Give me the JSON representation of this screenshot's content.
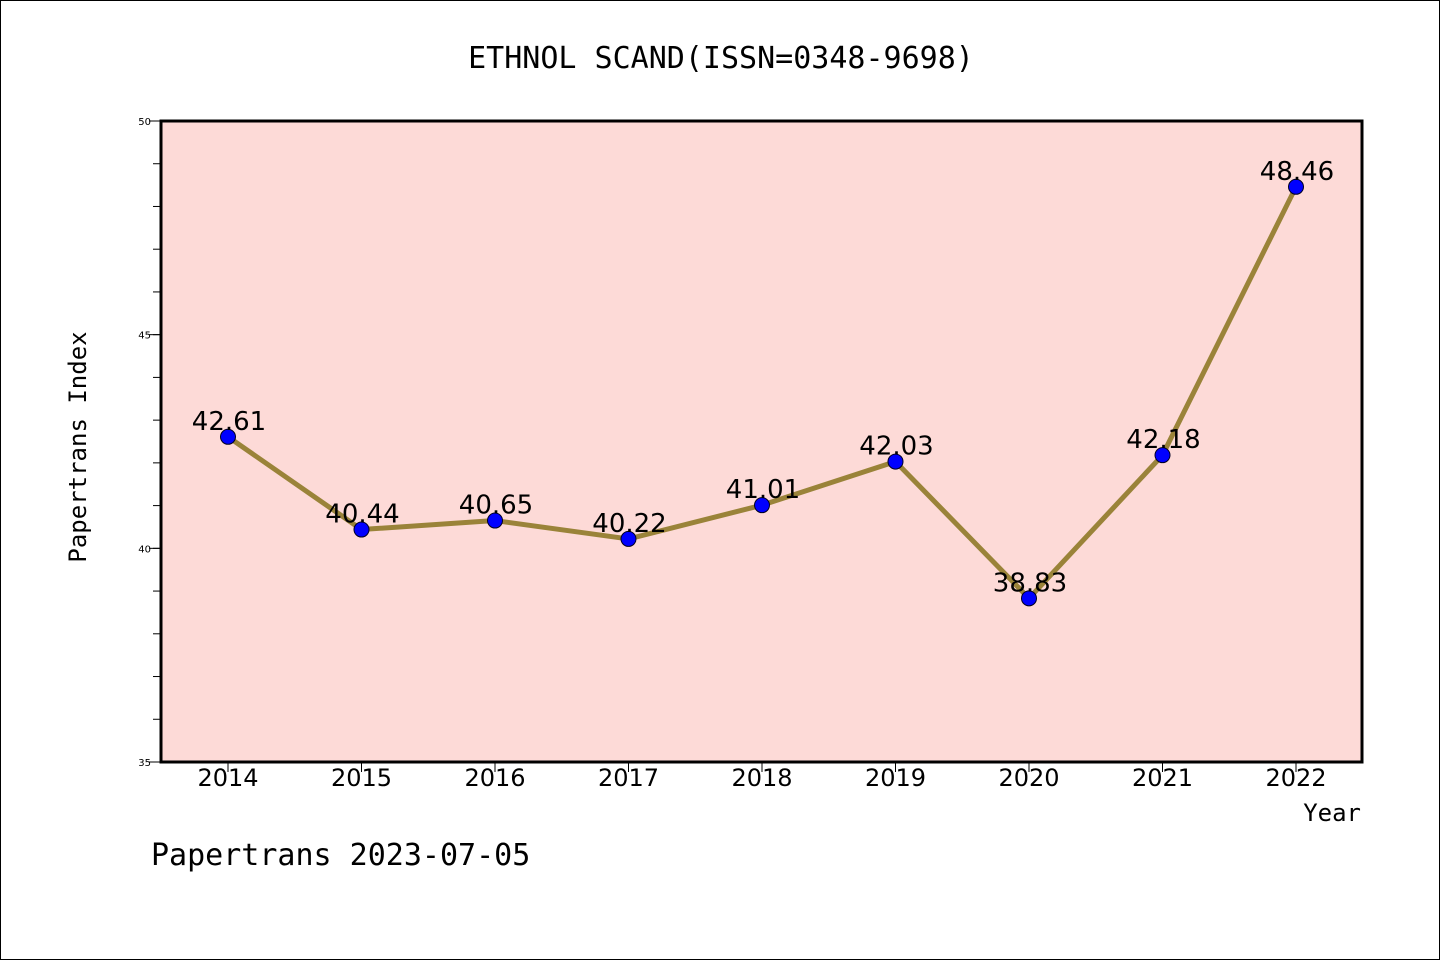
{
  "chart_data": {
    "type": "line",
    "title": "ETHNOL SCAND(ISSN=0348-9698)",
    "xlabel": "Year",
    "ylabel": "Papertrans Index",
    "categories": [
      "2014",
      "2015",
      "2016",
      "2017",
      "2018",
      "2019",
      "2020",
      "2021",
      "2022"
    ],
    "values": [
      42.61,
      40.44,
      40.65,
      40.22,
      41.01,
      42.03,
      38.83,
      42.18,
      48.46
    ],
    "value_labels": [
      "42.61",
      "40.44",
      "40.65",
      "40.22",
      "41.01",
      "42.03",
      "38.83",
      "42.18",
      "48.46"
    ],
    "ylim": [
      35,
      50
    ],
    "yticks": [
      35,
      40,
      45,
      50
    ],
    "ytick_labels": [
      "35",
      "40",
      "45",
      "50"
    ],
    "grid": false,
    "colors": {
      "plot_background": "#fddad7",
      "line": "#9a8339",
      "marker": "#0000ff"
    }
  },
  "footer": "Papertrans 2023-07-05"
}
